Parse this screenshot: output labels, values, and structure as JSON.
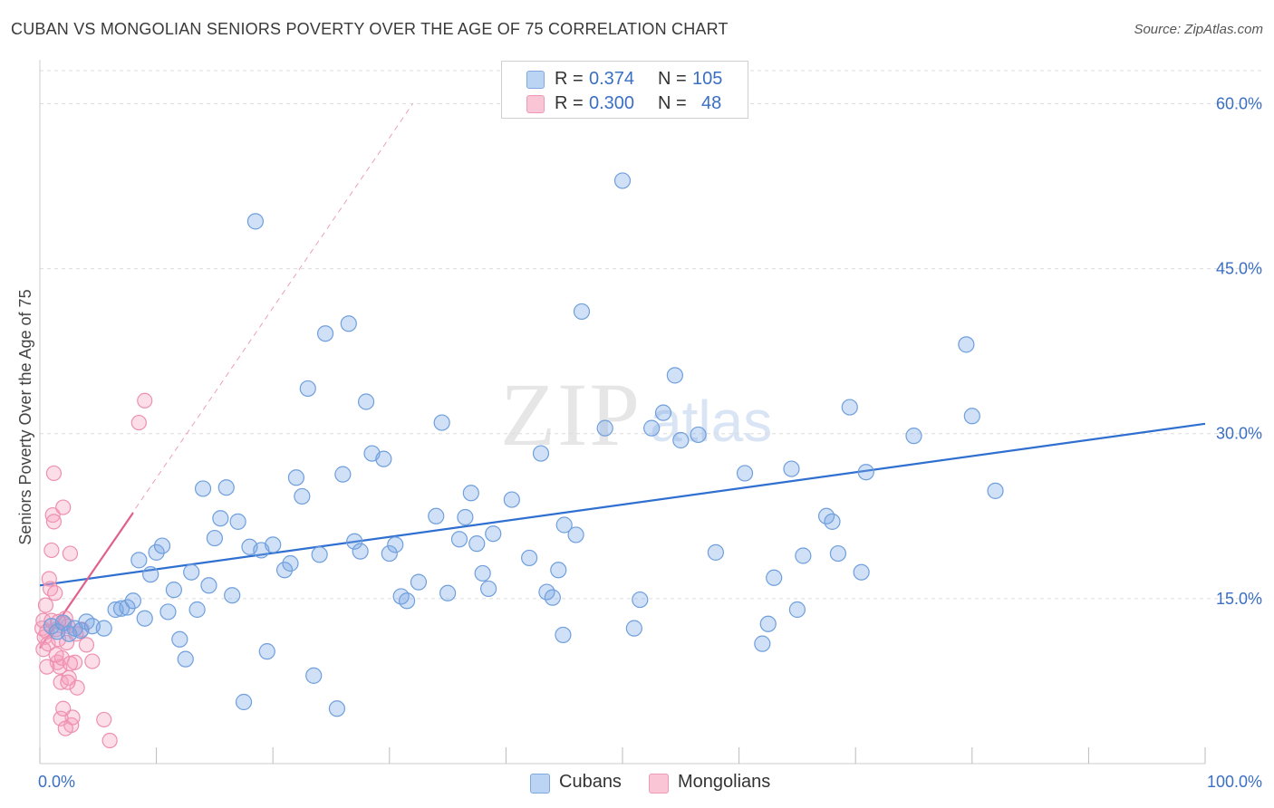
{
  "header": {
    "title": "CUBAN VS MONGOLIAN SENIORS POVERTY OVER THE AGE OF 75 CORRELATION CHART",
    "source": "Source: ZipAtlas.com"
  },
  "legend": {
    "rows": [
      {
        "r_label": "R =",
        "r_value": "0.374",
        "n_label": "N =",
        "n_value": "105",
        "color": "#a9c7ef"
      },
      {
        "r_label": "R =",
        "r_value": "0.300",
        "n_label": "N =",
        "n_value": "48",
        "color": "#f6b8cc"
      }
    ]
  },
  "bottom_legend": {
    "items": [
      {
        "label": "Cubans",
        "color": "#a9c7ef"
      },
      {
        "label": "Mongolians",
        "color": "#f6b8cc"
      }
    ]
  },
  "watermark": {
    "zip": "ZIP",
    "atlas": "atlas"
  },
  "colors": {
    "blue_fill": "rgba(120,165,230,0.35)",
    "blue_stroke": "#6f9fdc",
    "blue_line": "#2f6fd0",
    "pink_fill": "rgba(246,160,190,0.35)",
    "pink_stroke": "#ee8fb0",
    "pink_line": "#e0608e",
    "grid": "#dcdcdc",
    "label": "#3a6fc4"
  },
  "chart_data": {
    "type": "scatter",
    "title": "CUBAN VS MONGOLIAN SENIORS POVERTY OVER THE AGE OF 75 CORRELATION CHART",
    "xlabel": "",
    "ylabel": "Seniors Poverty Over the Age of 75",
    "xlim": [
      0,
      100
    ],
    "ylim": [
      0,
      63
    ],
    "x_tick_labels": [
      "0.0%",
      "100.0%"
    ],
    "y_ticks": [
      15,
      30,
      45,
      60
    ],
    "y_tick_labels": [
      "15.0%",
      "30.0%",
      "45.0%",
      "60.0%"
    ],
    "grid": true,
    "legend_position": "top-center",
    "series": [
      {
        "name": "Cubans",
        "R": 0.374,
        "N": 105,
        "trend": {
          "x": [
            0,
            100
          ],
          "y": [
            16.2,
            30.9
          ]
        },
        "points": [
          [
            1,
            12.5
          ],
          [
            1.5,
            12.0
          ],
          [
            2,
            12.8
          ],
          [
            2.5,
            11.8
          ],
          [
            3,
            12.3
          ],
          [
            3.5,
            12.1
          ],
          [
            4,
            12.9
          ],
          [
            4.5,
            12.5
          ],
          [
            5.5,
            12.3
          ],
          [
            6.5,
            14.0
          ],
          [
            7,
            14.1
          ],
          [
            7.5,
            14.2
          ],
          [
            8,
            14.8
          ],
          [
            8.5,
            18.5
          ],
          [
            9,
            13.2
          ],
          [
            9.5,
            17.2
          ],
          [
            10,
            19.2
          ],
          [
            10.5,
            19.8
          ],
          [
            11,
            13.8
          ],
          [
            11.5,
            15.8
          ],
          [
            12,
            11.3
          ],
          [
            12.5,
            9.5
          ],
          [
            13,
            17.4
          ],
          [
            13.5,
            14.0
          ],
          [
            14,
            25.0
          ],
          [
            14.5,
            16.2
          ],
          [
            15,
            20.5
          ],
          [
            15.5,
            22.3
          ],
          [
            16,
            25.1
          ],
          [
            16.5,
            15.3
          ],
          [
            17,
            22.0
          ],
          [
            17.5,
            5.6
          ],
          [
            18,
            19.7
          ],
          [
            18.5,
            49.3
          ],
          [
            19,
            19.4
          ],
          [
            19.5,
            10.2
          ],
          [
            20,
            19.9
          ],
          [
            21,
            17.6
          ],
          [
            21.5,
            18.2
          ],
          [
            22,
            26.0
          ],
          [
            22.5,
            24.3
          ],
          [
            23,
            34.1
          ],
          [
            23.5,
            8.0
          ],
          [
            24,
            19.0
          ],
          [
            24.5,
            39.1
          ],
          [
            25.5,
            5.0
          ],
          [
            26,
            26.3
          ],
          [
            26.5,
            40.0
          ],
          [
            27,
            20.2
          ],
          [
            27.5,
            19.3
          ],
          [
            28,
            32.9
          ],
          [
            28.5,
            28.2
          ],
          [
            29.5,
            27.7
          ],
          [
            30,
            19.1
          ],
          [
            30.5,
            19.9
          ],
          [
            31,
            15.2
          ],
          [
            31.5,
            14.8
          ],
          [
            32.5,
            16.5
          ],
          [
            34,
            22.5
          ],
          [
            34.5,
            31.0
          ],
          [
            35,
            15.5
          ],
          [
            36,
            20.4
          ],
          [
            36.5,
            22.4
          ],
          [
            37,
            24.6
          ],
          [
            37.5,
            20.0
          ],
          [
            38,
            17.3
          ],
          [
            38.5,
            15.9
          ],
          [
            38.9,
            20.9
          ],
          [
            40.5,
            24.0
          ],
          [
            42,
            18.7
          ],
          [
            43,
            28.2
          ],
          [
            43.5,
            15.6
          ],
          [
            44,
            15.1
          ],
          [
            44.5,
            17.6
          ],
          [
            44.9,
            11.7
          ],
          [
            45,
            21.7
          ],
          [
            46,
            20.8
          ],
          [
            46.5,
            41.1
          ],
          [
            48.5,
            30.5
          ],
          [
            50,
            53.0
          ],
          [
            51,
            12.3
          ],
          [
            51.5,
            14.9
          ],
          [
            52.5,
            30.5
          ],
          [
            53.5,
            31.9
          ],
          [
            54.5,
            35.3
          ],
          [
            55,
            29.4
          ],
          [
            56.5,
            29.9
          ],
          [
            58,
            19.2
          ],
          [
            60.5,
            26.4
          ],
          [
            62,
            10.9
          ],
          [
            62.5,
            12.7
          ],
          [
            63,
            16.9
          ],
          [
            64.5,
            26.8
          ],
          [
            65,
            14.0
          ],
          [
            65.5,
            18.9
          ],
          [
            67.5,
            22.5
          ],
          [
            68,
            22.0
          ],
          [
            68.5,
            19.1
          ],
          [
            69.5,
            32.4
          ],
          [
            70.5,
            17.4
          ],
          [
            70.9,
            26.5
          ],
          [
            75,
            29.8
          ],
          [
            79.5,
            38.1
          ],
          [
            80,
            31.6
          ],
          [
            82,
            24.8
          ]
        ]
      },
      {
        "name": "Mongolians",
        "R": 0.3,
        "N": 48,
        "trend": {
          "x": [
            0,
            8
          ],
          "y": [
            10.5,
            22.8
          ]
        },
        "trend_extension": {
          "x": [
            0,
            32
          ],
          "y": [
            10.5,
            60
          ]
        },
        "points": [
          [
            0.2,
            12.3
          ],
          [
            0.3,
            13.0
          ],
          [
            0.4,
            11.5
          ],
          [
            0.5,
            14.4
          ],
          [
            0.6,
            12.0
          ],
          [
            0.7,
            10.9
          ],
          [
            0.8,
            16.8
          ],
          [
            0.9,
            15.9
          ],
          [
            1.0,
            19.4
          ],
          [
            1.1,
            22.6
          ],
          [
            1.2,
            26.4
          ],
          [
            1.3,
            15.5
          ],
          [
            1.4,
            12.2
          ],
          [
            1.5,
            9.2
          ],
          [
            1.6,
            11.3
          ],
          [
            1.7,
            8.8
          ],
          [
            1.8,
            7.4
          ],
          [
            1.9,
            9.6
          ],
          [
            2.0,
            23.3
          ],
          [
            2.1,
            12.7
          ],
          [
            2.2,
            13.2
          ],
          [
            2.3,
            11.0
          ],
          [
            2.4,
            12.5
          ],
          [
            2.5,
            7.8
          ],
          [
            2.6,
            19.1
          ],
          [
            2.7,
            3.5
          ],
          [
            2.8,
            4.2
          ],
          [
            3.0,
            9.2
          ],
          [
            3.1,
            11.8
          ],
          [
            3.2,
            6.9
          ],
          [
            0.6,
            8.8
          ],
          [
            1.0,
            13.0
          ],
          [
            1.2,
            22.0
          ],
          [
            1.4,
            9.9
          ],
          [
            1.6,
            12.9
          ],
          [
            1.8,
            4.1
          ],
          [
            2.0,
            5.0
          ],
          [
            2.2,
            3.2
          ],
          [
            2.4,
            7.4
          ],
          [
            2.6,
            9.1
          ],
          [
            3.6,
            12.2
          ],
          [
            4.0,
            10.8
          ],
          [
            4.5,
            9.3
          ],
          [
            5.5,
            4.0
          ],
          [
            6.0,
            2.1
          ],
          [
            8.5,
            31.0
          ],
          [
            9.0,
            33.0
          ],
          [
            0.3,
            10.4
          ]
        ]
      }
    ]
  }
}
